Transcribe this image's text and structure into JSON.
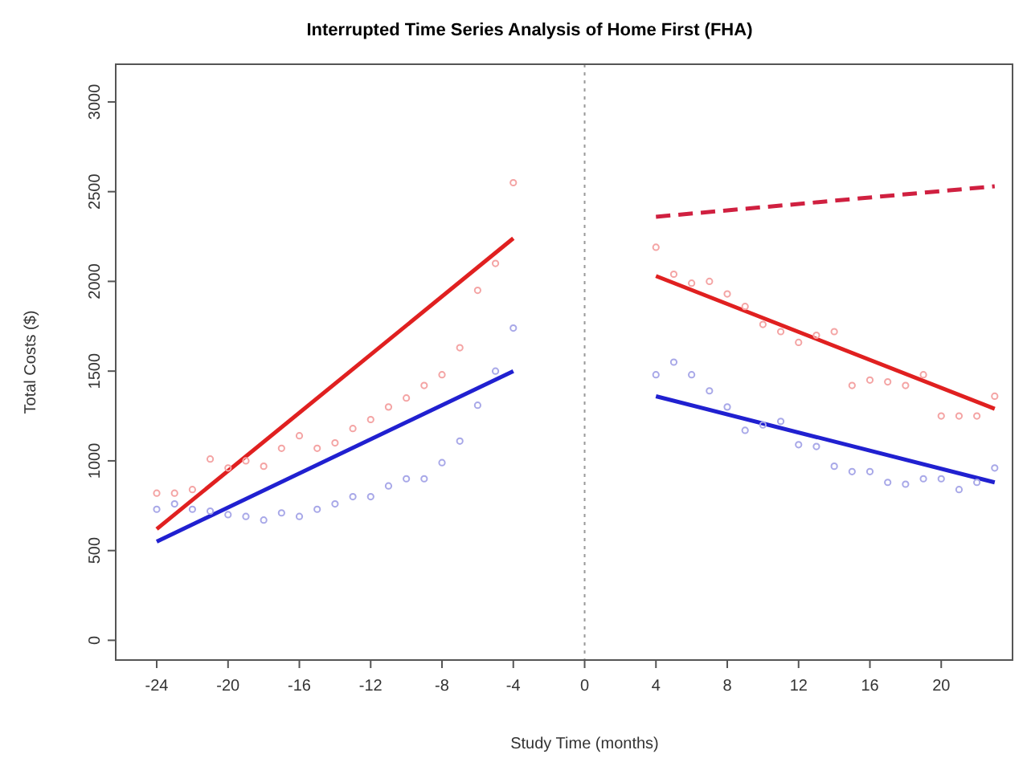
{
  "chart_data": {
    "type": "scatter",
    "title": "Interrupted Time Series Analysis of Home First (FHA)",
    "xlabel": "Study Time (months)",
    "ylabel": "Total Costs ($)",
    "xlim": [
      -26.3,
      24
    ],
    "ylim": [
      -110,
      3210
    ],
    "xticks": [
      -24,
      -20,
      -16,
      -12,
      -8,
      -4,
      0,
      4,
      8,
      12,
      16,
      20
    ],
    "yticks": [
      0,
      500,
      1000,
      1500,
      2000,
      2500,
      3000
    ],
    "grid": false,
    "ref_lines": [
      {
        "axis": "x",
        "value": 0,
        "color": "#999999",
        "line_style": "dotted"
      }
    ],
    "series": [
      {
        "color": "#f4a4a4",
        "marker": "circle",
        "x": [
          -24,
          -23,
          -22,
          -21,
          -20,
          -19,
          -18,
          -17,
          -16,
          -15,
          -14,
          -13,
          -12,
          -11,
          -10,
          -9,
          -8,
          -7,
          -6,
          -5,
          -4
        ],
        "values": [
          820,
          820,
          840,
          1010,
          960,
          1000,
          970,
          1070,
          1140,
          1070,
          1100,
          1180,
          1230,
          1300,
          1350,
          1420,
          1480,
          1630,
          1950,
          2100,
          2550
        ]
      },
      {
        "color": "#a8a8e8",
        "marker": "circle",
        "x": [
          -24,
          -23,
          -22,
          -21,
          -20,
          -19,
          -18,
          -17,
          -16,
          -15,
          -14,
          -13,
          -12,
          -11,
          -10,
          -9,
          -8,
          -7,
          -6,
          -5,
          -4
        ],
        "values": [
          730,
          760,
          730,
          720,
          700,
          690,
          670,
          710,
          690,
          730,
          760,
          800,
          800,
          860,
          900,
          900,
          990,
          1110,
          1310,
          1500,
          1740
        ]
      },
      {
        "color": "#f4a4a4",
        "marker": "circle",
        "x": [
          4,
          5,
          6,
          7,
          8,
          9,
          10,
          11,
          12,
          13,
          14,
          15,
          16,
          17,
          18,
          19,
          20,
          21,
          22,
          23
        ],
        "values": [
          2190,
          2040,
          1990,
          2000,
          1930,
          1860,
          1760,
          1720,
          1660,
          1700,
          1720,
          1420,
          1450,
          1440,
          1420,
          1480,
          1250,
          1250,
          1250,
          1360
        ]
      },
      {
        "color": "#a8a8e8",
        "marker": "circle",
        "x": [
          4,
          5,
          6,
          7,
          8,
          9,
          10,
          11,
          12,
          13,
          14,
          15,
          16,
          17,
          18,
          19,
          20,
          21,
          22,
          23
        ],
        "values": [
          1480,
          1550,
          1480,
          1390,
          1300,
          1170,
          1200,
          1220,
          1090,
          1080,
          970,
          940,
          940,
          880,
          870,
          900,
          900,
          840,
          880,
          960
        ]
      },
      {
        "type": "line",
        "color": "#e02020",
        "line_style": "solid",
        "x": [
          -24,
          -4
        ],
        "values": [
          620,
          2240
        ]
      },
      {
        "type": "line",
        "color": "#2020d0",
        "line_style": "solid",
        "x": [
          -24,
          -4
        ],
        "values": [
          550,
          1500
        ]
      },
      {
        "type": "line",
        "color": "#e02020",
        "line_style": "solid",
        "x": [
          4,
          23
        ],
        "values": [
          2030,
          1290
        ]
      },
      {
        "type": "line",
        "color": "#2020d0",
        "line_style": "solid",
        "x": [
          4,
          23
        ],
        "values": [
          1360,
          880
        ]
      },
      {
        "type": "line",
        "color": "#d02040",
        "line_style": "dashed",
        "x": [
          4,
          23
        ],
        "values": [
          2360,
          2530
        ]
      }
    ]
  }
}
